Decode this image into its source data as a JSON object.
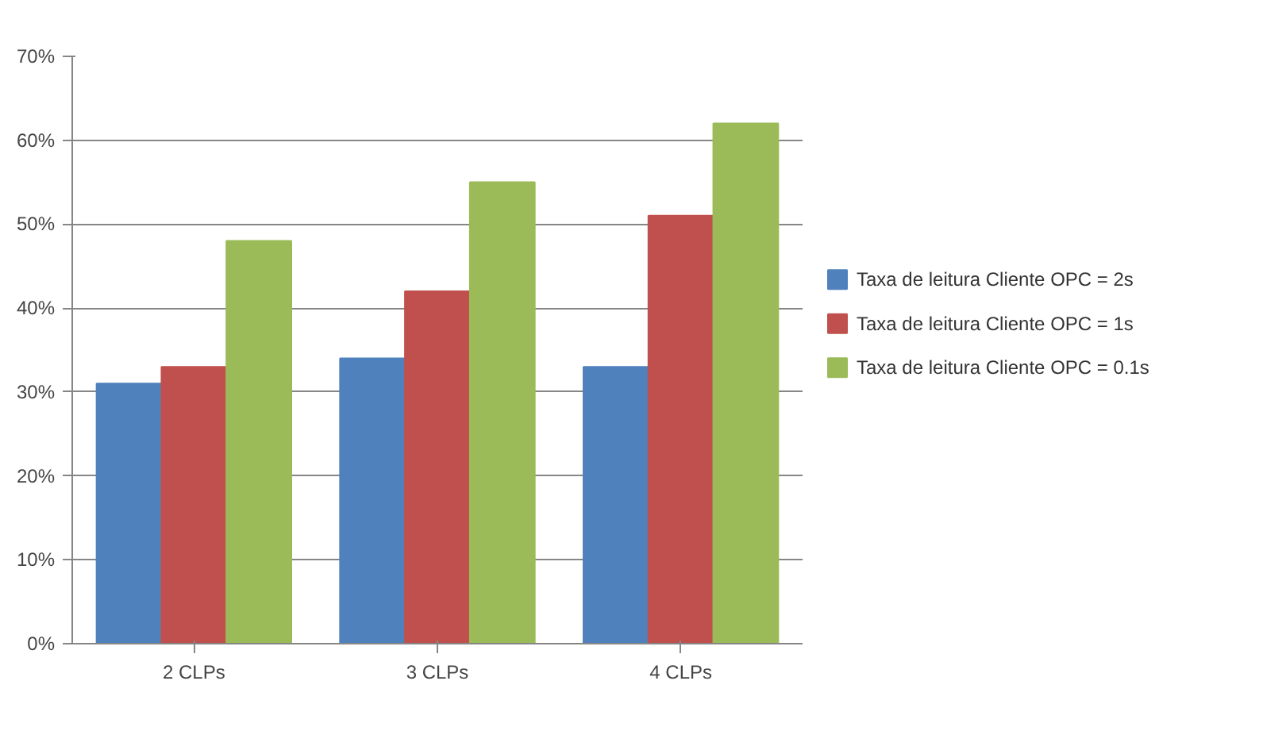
{
  "chart_data": {
    "type": "bar",
    "categories": [
      "2 CLPs",
      "3 CLPs",
      "4 CLPs"
    ],
    "series": [
      {
        "name": "Taxa de leitura Cliente OPC = 2s",
        "color": "#4f81bd",
        "values": [
          31,
          34,
          33
        ]
      },
      {
        "name": "Taxa de leitura Cliente OPC = 1s",
        "color": "#c0504d",
        "values": [
          33,
          42,
          51
        ]
      },
      {
        "name": "Taxa de leitura Cliente OPC = 0.1s",
        "color": "#9bbb59",
        "values": [
          48,
          55,
          62
        ]
      }
    ],
    "ylim": [
      0,
      70
    ],
    "yticks": [
      {
        "value": 0,
        "label": "0%"
      },
      {
        "value": 10,
        "label": "10%"
      },
      {
        "value": 20,
        "label": "20%"
      },
      {
        "value": 30,
        "label": "30%"
      },
      {
        "value": 40,
        "label": "40%"
      },
      {
        "value": 50,
        "label": "50%"
      },
      {
        "value": 60,
        "label": "60%"
      },
      {
        "value": 70,
        "label": "70%"
      }
    ],
    "grid": "y",
    "legend": "right"
  }
}
